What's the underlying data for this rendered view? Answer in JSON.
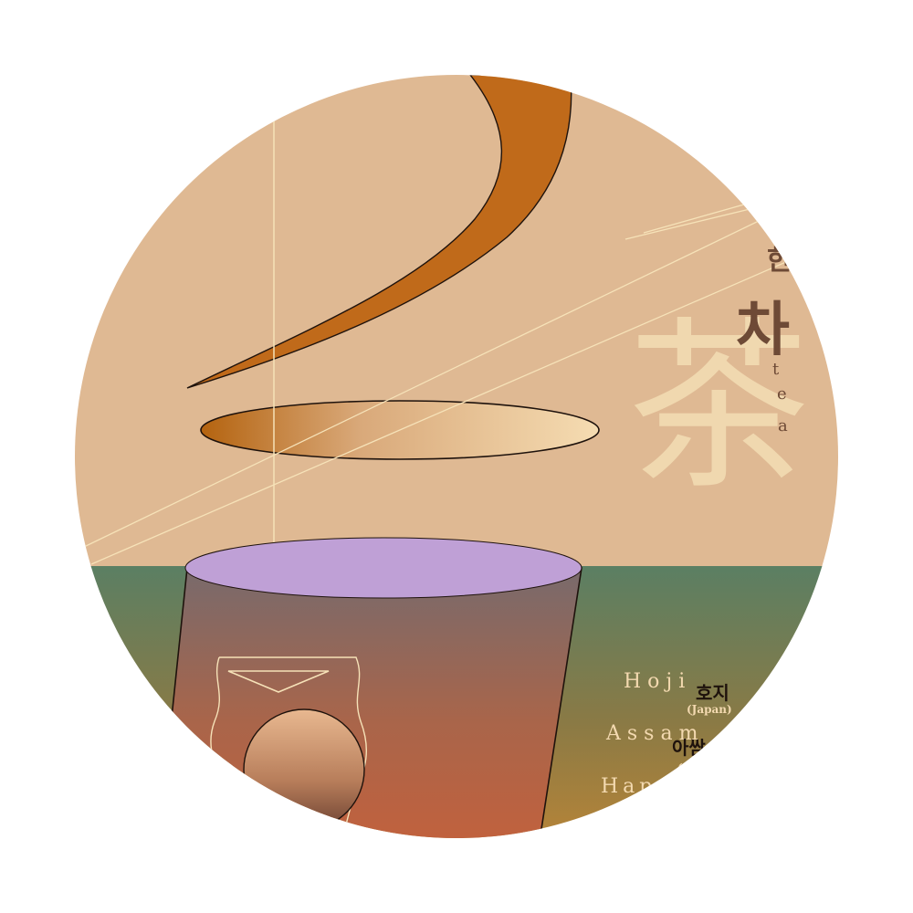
{
  "title": {
    "korean_partial": "한",
    "korean": "차",
    "hanja": "茶",
    "english_letters": [
      "t",
      "e",
      "a"
    ]
  },
  "tea_list": [
    {
      "english": "Hoji",
      "korean": "호지",
      "origin": "(Japan)"
    },
    {
      "english": "Assam",
      "korean": "아쌈",
      "origin": "(I"
    },
    {
      "english": "Happi"
    }
  ],
  "colors": {
    "sky": "#dfb993",
    "ground_top": "#5b7f63",
    "ground_bottom": "#d08a30",
    "cup_lid": "#bfa0d6",
    "cup_top": "#7a6a6a",
    "cup_bottom": "#c4623a",
    "swoosh": "#c06a1a",
    "line": "#f6e2b8",
    "text_dark": "#6e4a36",
    "text_light": "#f3d9b0",
    "hanja": "#f2dcb3"
  }
}
